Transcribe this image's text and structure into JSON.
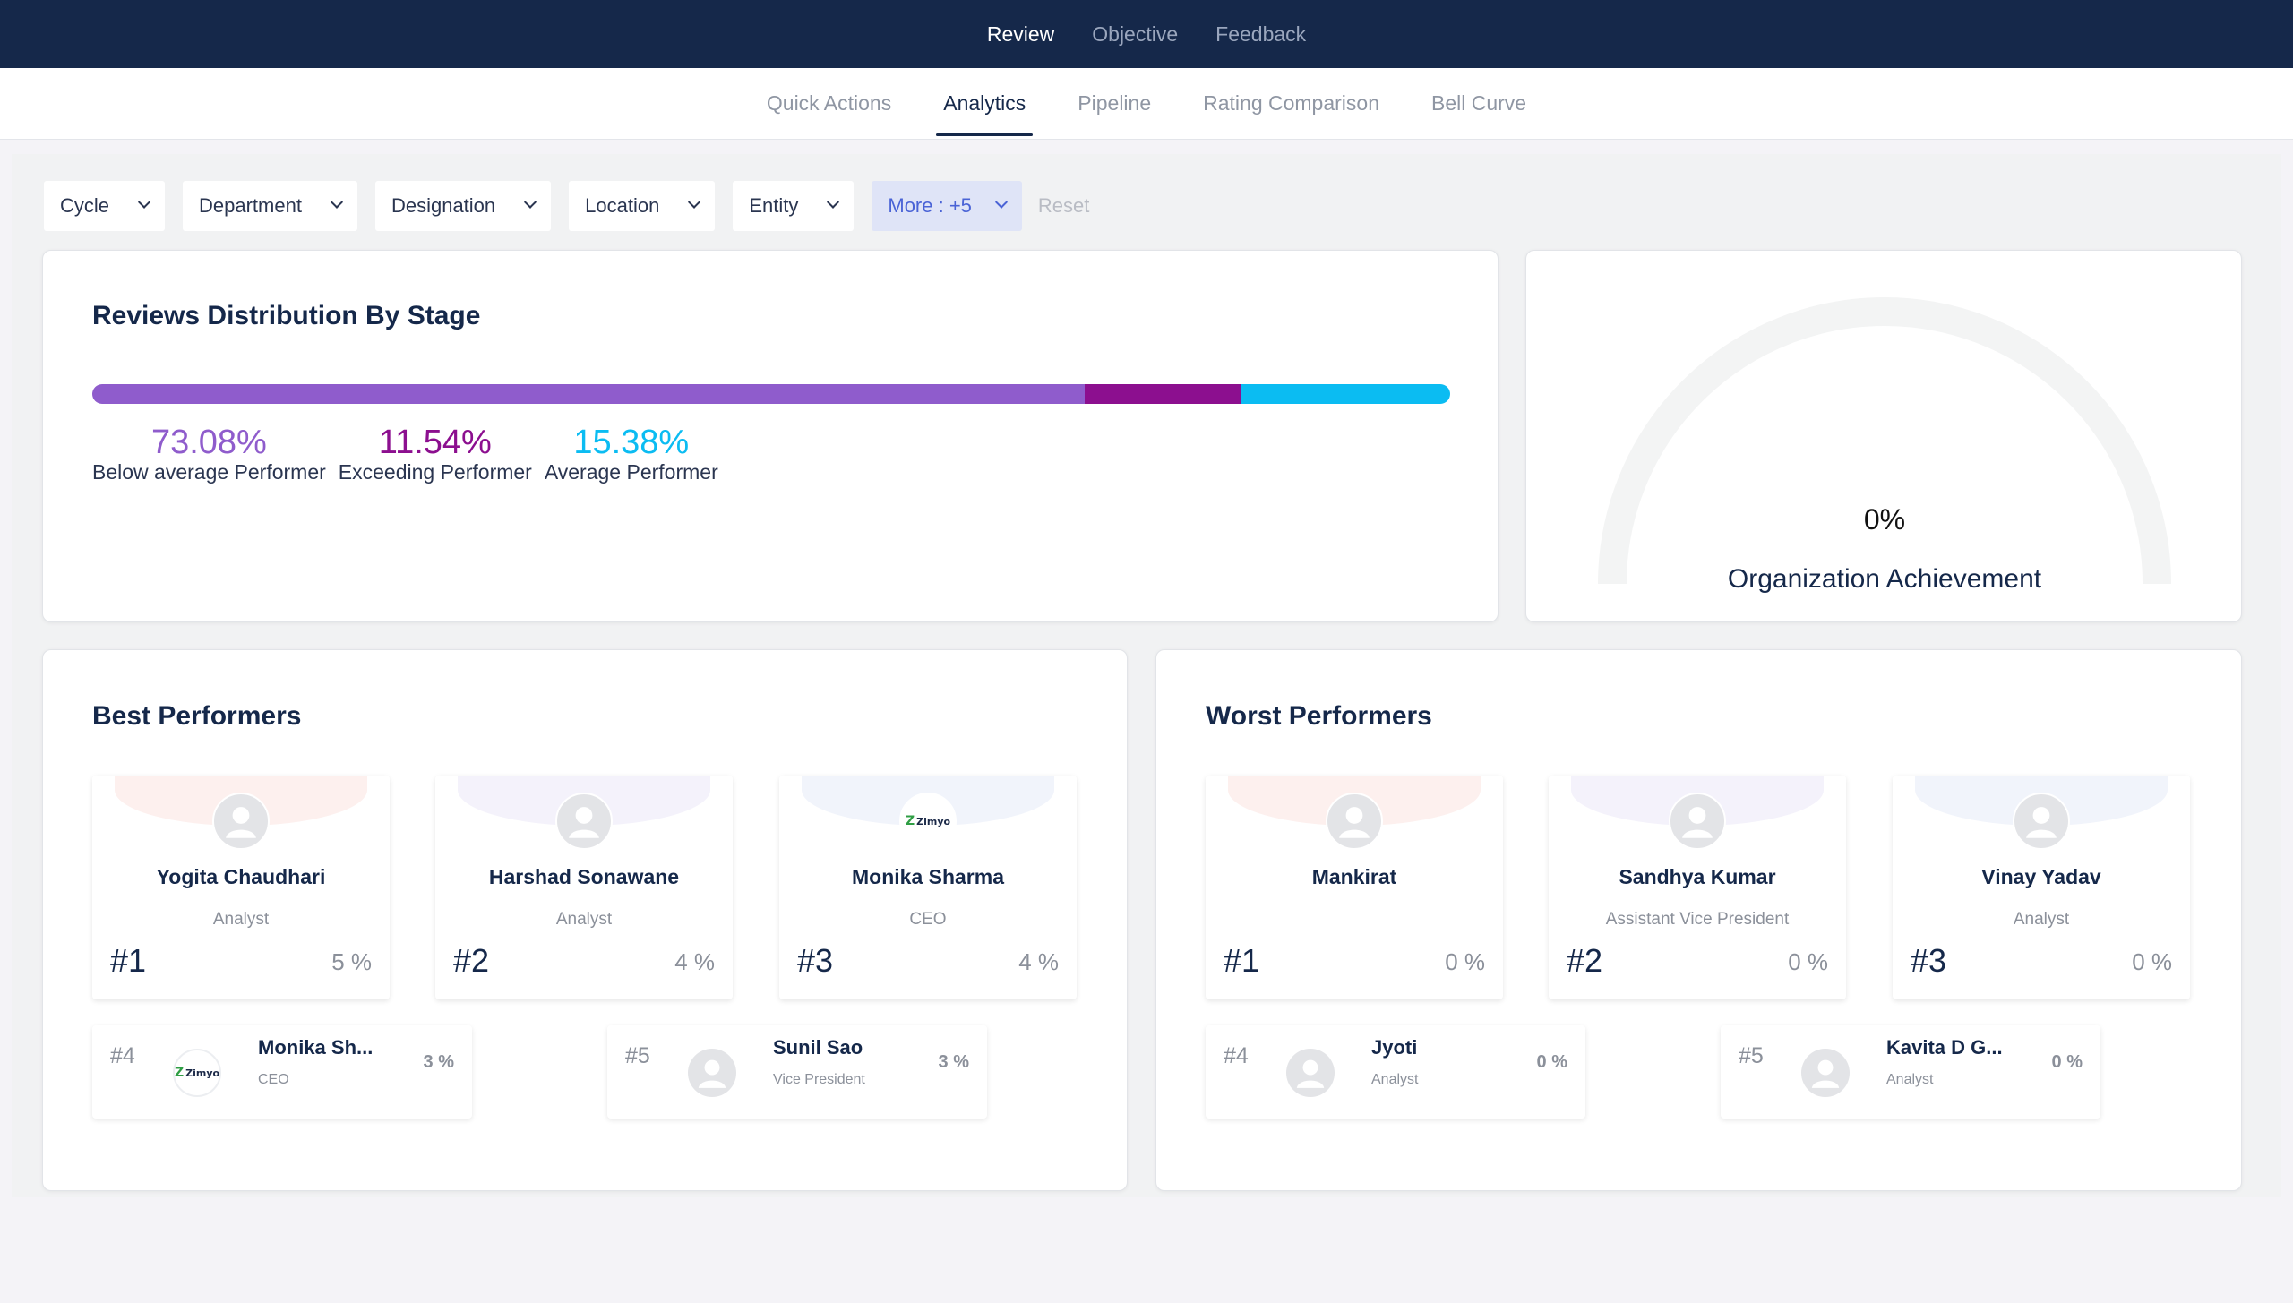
{
  "top_nav": [
    {
      "label": "Review",
      "active": true
    },
    {
      "label": "Objective",
      "active": false
    },
    {
      "label": "Feedback",
      "active": false
    }
  ],
  "sub_tabs": [
    {
      "label": "Quick Actions",
      "active": false
    },
    {
      "label": "Analytics",
      "active": true
    },
    {
      "label": "Pipeline",
      "active": false
    },
    {
      "label": "Rating Comparison",
      "active": false
    },
    {
      "label": "Bell Curve",
      "active": false
    }
  ],
  "filters": {
    "cycle": "Cycle",
    "department": "Department",
    "designation": "Designation",
    "location": "Location",
    "entity": "Entity",
    "more": "More : +5",
    "reset": "Reset"
  },
  "distribution": {
    "title": "Reviews Distribution By Stage",
    "segments": [
      {
        "pct": "73.08%",
        "value": 73.08,
        "label": "Below average Performer",
        "color": "#8f5ccc"
      },
      {
        "pct": "11.54%",
        "value": 11.54,
        "label": "Exceeding Performer",
        "color": "#8c0f8f"
      },
      {
        "pct": "15.38%",
        "value": 15.38,
        "label": "Average Performer",
        "color": "#0bbcf2"
      }
    ]
  },
  "gauge": {
    "value": "0%",
    "fraction": 0,
    "label": "Organization Achievement",
    "track_color": "#f3f4f4"
  },
  "best": {
    "title": "Best Performers",
    "top": [
      {
        "name": "Yogita Chaudhari",
        "role": "Analyst",
        "rank": "#1",
        "score": "5 %",
        "avatar": "person-icon",
        "band": "#fdf0ee"
      },
      {
        "name": "Harshad Sonawane",
        "role": "Analyst",
        "rank": "#2",
        "score": "4 %",
        "avatar": "person-icon",
        "band": "#f4f2fb"
      },
      {
        "name": "Monika Sharma",
        "role": "CEO",
        "rank": "#3",
        "score": "4 %",
        "avatar": "zimyo-logo",
        "logo_text": "Zimyo",
        "band": "#f1f4fb"
      }
    ],
    "more": [
      {
        "rank": "#4",
        "name": "Monika Sh...",
        "role": "CEO",
        "score": "3 %",
        "avatar": "zimyo-logo",
        "logo_text": "Zimyo"
      },
      {
        "rank": "#5",
        "name": "Sunil Sao",
        "role": "Vice President",
        "score": "3 %",
        "avatar": "person-icon"
      }
    ]
  },
  "worst": {
    "title": "Worst Performers",
    "top": [
      {
        "name": "Mankirat",
        "role": "",
        "rank": "#1",
        "score": "0 %",
        "avatar": "person-icon",
        "band": "#fdf0ee"
      },
      {
        "name": "Sandhya Kumar",
        "role": "Assistant Vice President",
        "rank": "#2",
        "score": "0 %",
        "avatar": "person-icon",
        "band": "#f4f2fb"
      },
      {
        "name": "Vinay Yadav",
        "role": "Analyst",
        "rank": "#3",
        "score": "0 %",
        "avatar": "person-icon",
        "band": "#f1f4fb"
      }
    ],
    "more": [
      {
        "rank": "#4",
        "name": "Jyoti",
        "role": "Analyst",
        "score": "0 %",
        "avatar": "person-icon"
      },
      {
        "rank": "#5",
        "name": "Kavita D G...",
        "role": "Analyst",
        "score": "0 %",
        "avatar": "person-icon"
      }
    ]
  }
}
